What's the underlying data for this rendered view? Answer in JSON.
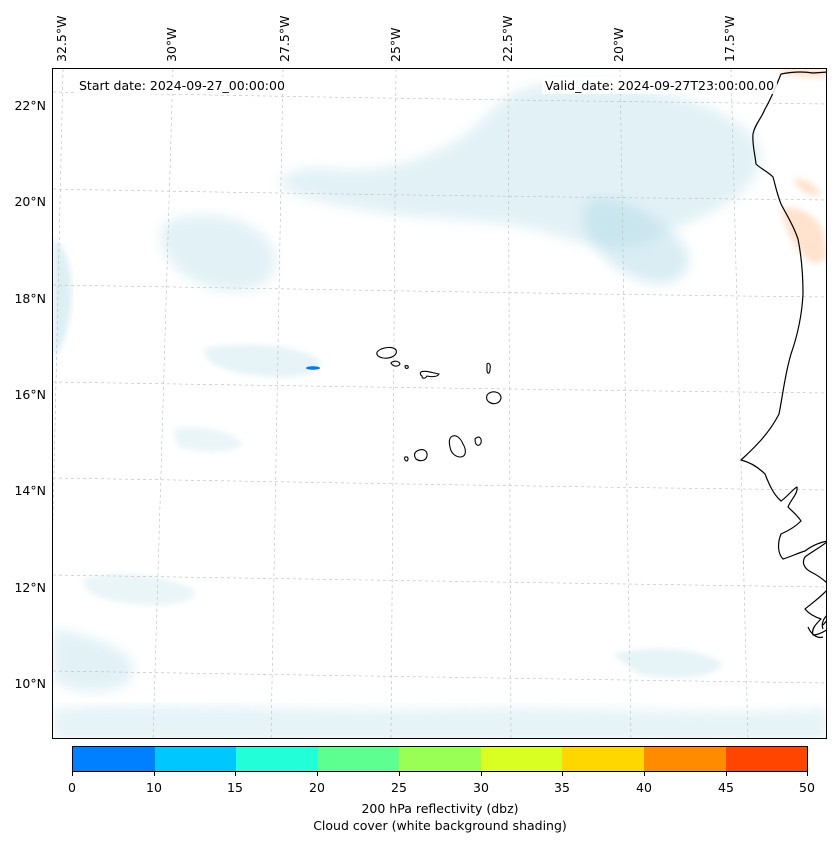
{
  "map": {
    "start_date": "Start date: 2024-09-27_00:00:00",
    "valid_date": "Valid_date: 2024-09-27T23:00:00.00",
    "lon_labels": [
      "32.5°W",
      "30°W",
      "27.5°W",
      "25°W",
      "22.5°W",
      "20°W",
      "17.5°W"
    ],
    "lat_labels": [
      "22°N",
      "20°N",
      "18°N",
      "16°N",
      "14°N",
      "12°N",
      "10°N"
    ],
    "coastline_color": "#000000",
    "cloud_color": "#add8e6",
    "echo_color": "#0077ee"
  },
  "colorbar": {
    "ticks": [
      "0",
      "10",
      "15",
      "20",
      "25",
      "30",
      "35",
      "40",
      "45",
      "50"
    ],
    "colors": [
      "#0080ff",
      "#00c8ff",
      "#22ffd8",
      "#5cff90",
      "#99ff55",
      "#d9ff22",
      "#ffd700",
      "#ff8c00",
      "#ff4500"
    ],
    "title_line1": "200 hPa reflectivity (dbz)",
    "title_line2": "Cloud cover (white background shading)"
  }
}
